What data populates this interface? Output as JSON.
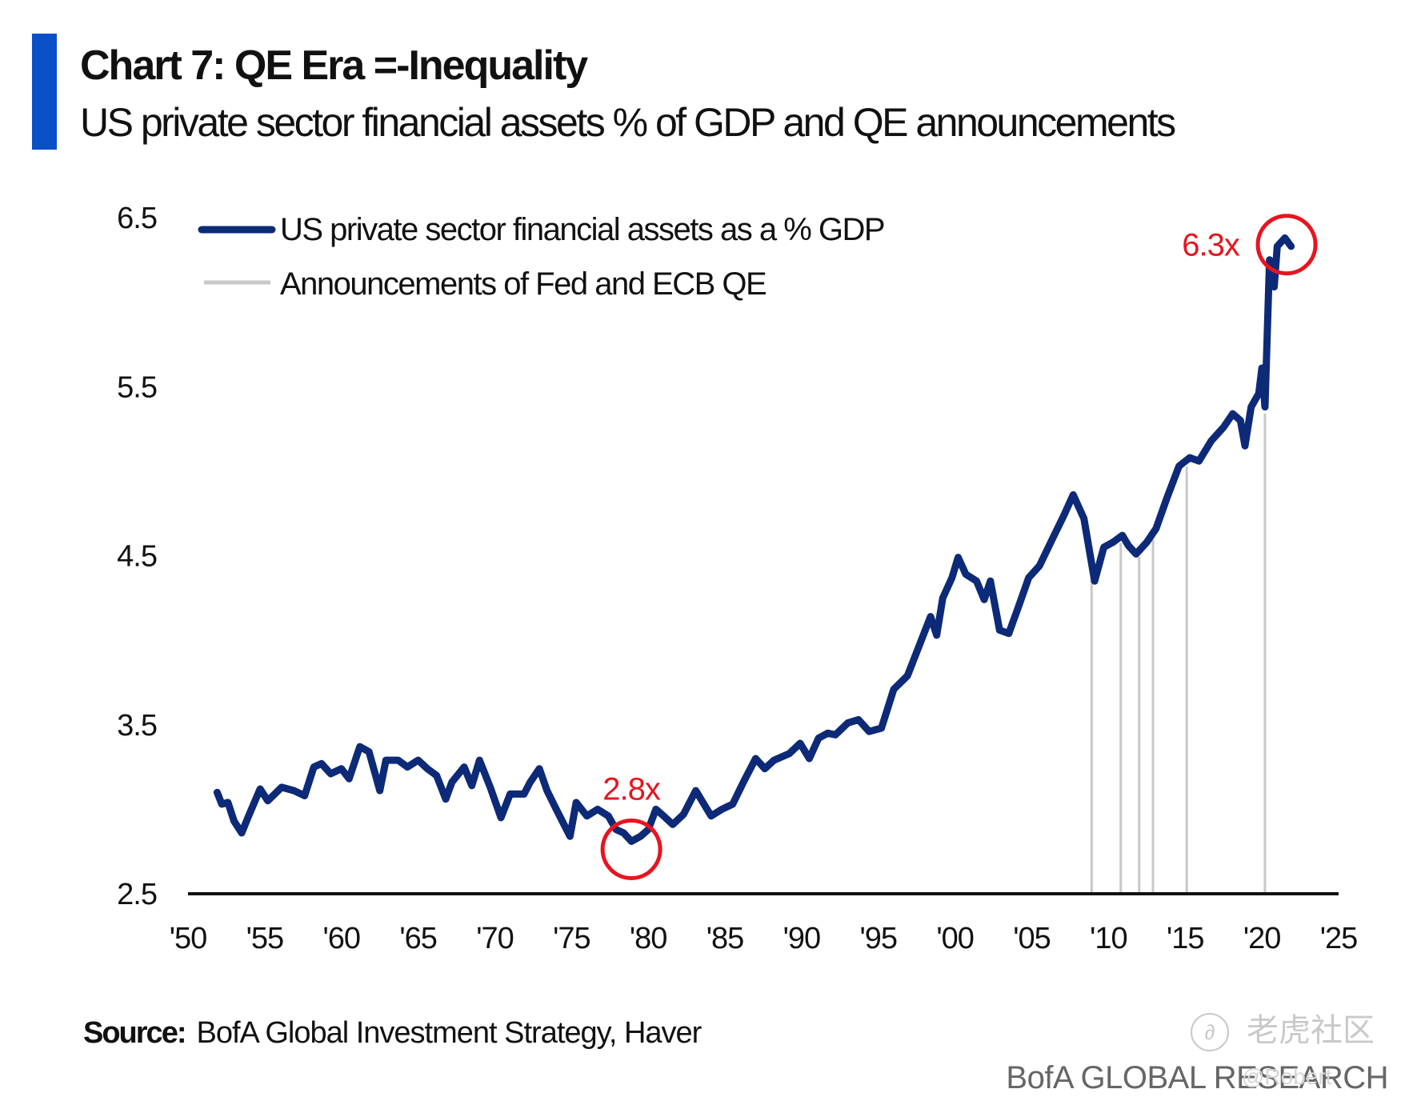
{
  "header": {
    "title": "Chart 7: QE Era =-Inequality",
    "subtitle": "US private sector financial assets % of GDP and QE announcements",
    "accent_color": "#0a50c8"
  },
  "footer": {
    "source_label": "Source:",
    "source_text": "BofA Global Investment Strategy, Haver",
    "brand": "BofA GLOBAL RESEARCH",
    "watermark_text": "老虎社区",
    "watermark_logo": "tiger-logo",
    "watermark_handle": "@Robert"
  },
  "chart_data": {
    "type": "line",
    "title": "Chart 7: QE Era =-Inequality",
    "subtitle": "US private sector financial assets % of GDP and QE announcements",
    "xlabel": "",
    "ylabel": "",
    "xlim": [
      1950,
      2025
    ],
    "ylim": [
      2.5,
      6.5
    ],
    "x_ticks": [
      1950,
      1955,
      1960,
      1965,
      1970,
      1975,
      1980,
      1985,
      1990,
      1995,
      2000,
      2005,
      2010,
      2015,
      2020,
      2025
    ],
    "x_tick_labels": [
      "'50",
      "'55",
      "'60",
      "'65",
      "'70",
      "'75",
      "'80",
      "'85",
      "'90",
      "'95",
      "'00",
      "'05",
      "'10",
      "'15",
      "'20",
      "'25"
    ],
    "y_ticks": [
      2.5,
      3.5,
      4.5,
      5.5,
      6.5
    ],
    "y_tick_labels": [
      "2.5",
      "3.5",
      "4.5",
      "5.5",
      "6.5"
    ],
    "grid": false,
    "legend_position": "top-left",
    "legend": [
      {
        "label": "US private sector financial assets as a % GDP",
        "color": "#0d2a78",
        "style": "thick-line"
      },
      {
        "label": "Announcements of Fed and ECB QE",
        "color": "#c8c8c8",
        "style": "thin-line"
      }
    ],
    "series": [
      {
        "name": "US private sector financial assets as a % GDP",
        "color": "#0d2a78",
        "x": [
          1951.9,
          1952.2,
          1952.6,
          1953.0,
          1953.5,
          1953.9,
          1954.7,
          1955.2,
          1956.1,
          1956.9,
          1957.6,
          1958.2,
          1958.7,
          1959.3,
          1960.0,
          1960.5,
          1961.2,
          1961.8,
          1962.5,
          1962.9,
          1963.7,
          1964.3,
          1965.0,
          1965.6,
          1966.2,
          1966.8,
          1967.2,
          1968.0,
          1968.5,
          1969.0,
          1969.7,
          1970.4,
          1971.0,
          1971.9,
          1972.3,
          1972.9,
          1973.4,
          1974.0,
          1974.9,
          1975.3,
          1976.0,
          1976.7,
          1977.4,
          1977.9,
          1978.4,
          1978.9,
          1979.5,
          1980.0,
          1980.5,
          1981.0,
          1981.6,
          1982.3,
          1983.1,
          1984.1,
          1984.8,
          1985.5,
          1986.2,
          1987.0,
          1987.6,
          1988.2,
          1989.2,
          1989.9,
          1990.5,
          1991.1,
          1991.7,
          1992.2,
          1993.0,
          1993.7,
          1994.4,
          1995.2,
          1996.0,
          1996.9,
          1997.8,
          1998.4,
          1998.8,
          1999.2,
          1999.8,
          2000.2,
          2000.7,
          2001.4,
          2001.9,
          2002.3,
          2002.9,
          2003.5,
          2004.1,
          2004.8,
          2005.5,
          2006.4,
          2007.1,
          2007.7,
          2008.4,
          2009.1,
          2009.7,
          2010.3,
          2010.9,
          2011.3,
          2011.8,
          2012.5,
          2013.1,
          2013.8,
          2014.6,
          2015.3,
          2015.9,
          2016.7,
          2017.5,
          2018.1,
          2018.6,
          2018.9,
          2019.3,
          2019.8,
          2020.0,
          2020.2,
          2020.5,
          2020.8,
          2021.0,
          2021.5,
          2021.9
        ],
        "values": [
          3.1,
          3.03,
          3.04,
          2.93,
          2.86,
          2.95,
          3.12,
          3.05,
          3.13,
          3.11,
          3.08,
          3.25,
          3.27,
          3.21,
          3.24,
          3.18,
          3.37,
          3.34,
          3.11,
          3.29,
          3.29,
          3.25,
          3.29,
          3.24,
          3.2,
          3.06,
          3.16,
          3.25,
          3.14,
          3.29,
          3.13,
          2.95,
          3.09,
          3.09,
          3.16,
          3.24,
          3.11,
          3.0,
          2.84,
          3.04,
          2.96,
          3.0,
          2.96,
          2.88,
          2.86,
          2.81,
          2.84,
          2.88,
          3.0,
          2.96,
          2.91,
          2.97,
          3.11,
          2.96,
          3.0,
          3.03,
          3.16,
          3.3,
          3.24,
          3.29,
          3.33,
          3.39,
          3.3,
          3.42,
          3.45,
          3.44,
          3.51,
          3.53,
          3.46,
          3.48,
          3.71,
          3.79,
          4.0,
          4.14,
          4.03,
          4.25,
          4.37,
          4.49,
          4.39,
          4.35,
          4.24,
          4.35,
          4.06,
          4.04,
          4.19,
          4.37,
          4.44,
          4.61,
          4.74,
          4.86,
          4.72,
          4.35,
          4.55,
          4.58,
          4.62,
          4.56,
          4.51,
          4.58,
          4.66,
          4.84,
          5.03,
          5.08,
          5.06,
          5.18,
          5.26,
          5.34,
          5.3,
          5.15,
          5.38,
          5.46,
          5.61,
          5.38,
          6.25,
          6.09,
          6.33,
          6.38,
          6.33
        ]
      },
      {
        "name": "Announcements of Fed and ECB QE",
        "color": "#c8c8c8",
        "type": "vline",
        "x": [
          2008.9,
          2010.8,
          2012.0,
          2012.9,
          2015.1,
          2020.2
        ]
      }
    ],
    "annotations": [
      {
        "text": "2.8x",
        "x": 1978.9,
        "y": 2.81,
        "color": "#e8141e",
        "marker": "circle"
      },
      {
        "text": "6.3x",
        "x": 2021.3,
        "y": 6.35,
        "color": "#e8141e",
        "marker": "circle"
      }
    ]
  }
}
